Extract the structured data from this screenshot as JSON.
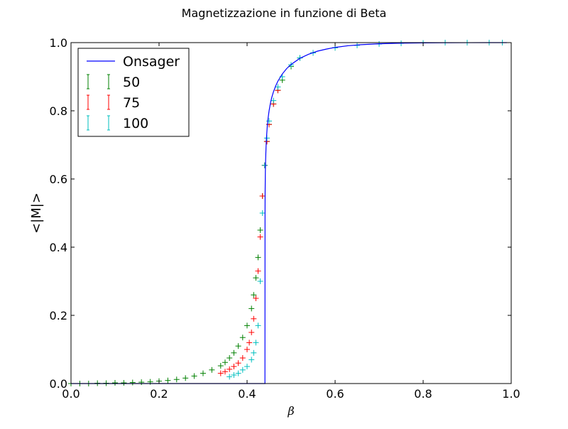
{
  "chart_data": {
    "type": "scatter",
    "title": "Magnetizzazione in funzione di Beta",
    "xlabel": "β",
    "ylabel": "<|M|>",
    "xlim": [
      0.0,
      1.0
    ],
    "ylim": [
      0.0,
      1.0
    ],
    "x_ticks": [
      "0.0",
      "0.2",
      "0.4",
      "0.6",
      "0.8",
      "1.0"
    ],
    "y_ticks": [
      "0.0",
      "0.2",
      "0.4",
      "0.6",
      "0.8",
      "1.0"
    ],
    "grid": false,
    "legend_position": "upper-left",
    "series": [
      {
        "name": "Onsager",
        "kind": "line",
        "color": "#0000ff",
        "x": [
          0.0,
          0.4406,
          0.4408,
          0.441,
          0.4415,
          0.442,
          0.443,
          0.444,
          0.446,
          0.448,
          0.45,
          0.453,
          0.456,
          0.46,
          0.465,
          0.47,
          0.48,
          0.49,
          0.5,
          0.52,
          0.54,
          0.56,
          0.58,
          0.6,
          0.63,
          0.66,
          0.7,
          0.75,
          0.8,
          0.85,
          0.9,
          0.95,
          0.99
        ],
        "y": [
          0.0,
          0.0,
          0.5,
          0.56,
          0.62,
          0.65,
          0.69,
          0.72,
          0.757,
          0.781,
          0.8,
          0.822,
          0.839,
          0.856,
          0.873,
          0.887,
          0.908,
          0.924,
          0.936,
          0.954,
          0.966,
          0.975,
          0.981,
          0.986,
          0.991,
          0.994,
          0.9966,
          0.9985,
          0.9993,
          0.9997,
          0.9999,
          0.99995,
          1.0
        ]
      },
      {
        "name": "50",
        "kind": "errorbar",
        "color": "#008000",
        "x": [
          0.0,
          0.02,
          0.04,
          0.06,
          0.08,
          0.1,
          0.12,
          0.14,
          0.16,
          0.18,
          0.2,
          0.22,
          0.24,
          0.26,
          0.28,
          0.3,
          0.32,
          0.34,
          0.35,
          0.36,
          0.37,
          0.38,
          0.39,
          0.4,
          0.41,
          0.415,
          0.42,
          0.425,
          0.43,
          0.435,
          0.44,
          0.445,
          0.45,
          0.46,
          0.47,
          0.48,
          0.5,
          0.52,
          0.55,
          0.6
        ],
        "y": [
          0.0,
          0.0,
          0.0,
          0.001,
          0.001,
          0.002,
          0.002,
          0.003,
          0.004,
          0.005,
          0.007,
          0.009,
          0.012,
          0.016,
          0.022,
          0.03,
          0.04,
          0.052,
          0.062,
          0.075,
          0.09,
          0.11,
          0.135,
          0.17,
          0.22,
          0.26,
          0.31,
          0.37,
          0.45,
          0.55,
          0.64,
          0.71,
          0.76,
          0.82,
          0.86,
          0.89,
          0.93,
          0.955,
          0.97,
          0.985
        ]
      },
      {
        "name": "75",
        "kind": "errorbar",
        "color": "#ff0000",
        "x": [
          0.34,
          0.35,
          0.36,
          0.37,
          0.38,
          0.39,
          0.4,
          0.405,
          0.41,
          0.415,
          0.42,
          0.425,
          0.43,
          0.435,
          0.44,
          0.445,
          0.45,
          0.46,
          0.47
        ],
        "y": [
          0.03,
          0.035,
          0.042,
          0.05,
          0.06,
          0.075,
          0.1,
          0.12,
          0.15,
          0.19,
          0.25,
          0.33,
          0.43,
          0.55,
          0.64,
          0.71,
          0.76,
          0.82,
          0.86
        ]
      },
      {
        "name": "100",
        "kind": "errorbar",
        "color": "#00bfbf",
        "x": [
          0.36,
          0.37,
          0.38,
          0.39,
          0.4,
          0.41,
          0.415,
          0.42,
          0.425,
          0.43,
          0.435,
          0.44,
          0.445,
          0.45,
          0.46,
          0.47,
          0.48,
          0.5,
          0.52,
          0.55,
          0.6,
          0.65,
          0.7,
          0.75,
          0.8,
          0.85,
          0.9,
          0.95,
          0.98
        ],
        "y": [
          0.02,
          0.025,
          0.03,
          0.04,
          0.05,
          0.07,
          0.09,
          0.12,
          0.17,
          0.3,
          0.5,
          0.64,
          0.72,
          0.77,
          0.83,
          0.87,
          0.9,
          0.935,
          0.955,
          0.97,
          0.985,
          0.992,
          0.996,
          0.998,
          0.999,
          1.0,
          1.0,
          1.0,
          1.0
        ]
      }
    ]
  }
}
